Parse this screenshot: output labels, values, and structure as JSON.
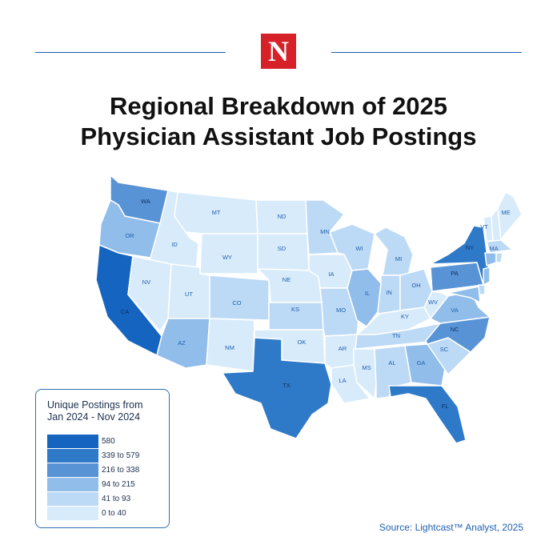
{
  "brand": {
    "logo_letter": "N",
    "logo_color": "#d62128"
  },
  "title": {
    "line1": "Regional Breakdown of 2025",
    "line2": "Physician Assistant Job Postings"
  },
  "legend": {
    "title_line1": "Unique Postings from",
    "title_line2": "Jan 2024 - Nov 2024",
    "bins": [
      {
        "label": "580",
        "color": "#1565c0"
      },
      {
        "label": "339 to 579",
        "color": "#2e7ac9"
      },
      {
        "label": "216 to 338",
        "color": "#5893d6"
      },
      {
        "label": "94 to 215",
        "color": "#91bdea"
      },
      {
        "label": "41 to 93",
        "color": "#bcdaf5"
      },
      {
        "label": "0 to 40",
        "color": "#d8ebfb"
      }
    ]
  },
  "states": [
    {
      "code": "WA",
      "bin": 2
    },
    {
      "code": "OR",
      "bin": 3
    },
    {
      "code": "CA",
      "bin": 0
    },
    {
      "code": "ID",
      "bin": 5
    },
    {
      "code": "NV",
      "bin": 5
    },
    {
      "code": "MT",
      "bin": 5
    },
    {
      "code": "WY",
      "bin": 5
    },
    {
      "code": "UT",
      "bin": 5
    },
    {
      "code": "AZ",
      "bin": 3
    },
    {
      "code": "CO",
      "bin": 4
    },
    {
      "code": "NM",
      "bin": 5
    },
    {
      "code": "ND",
      "bin": 5
    },
    {
      "code": "SD",
      "bin": 5
    },
    {
      "code": "NE",
      "bin": 5
    },
    {
      "code": "KS",
      "bin": 4
    },
    {
      "code": "OK",
      "bin": 5
    },
    {
      "code": "TX",
      "bin": 1
    },
    {
      "code": "MN",
      "bin": 4
    },
    {
      "code": "IA",
      "bin": 5
    },
    {
      "code": "MO",
      "bin": 4
    },
    {
      "code": "AR",
      "bin": 5
    },
    {
      "code": "LA",
      "bin": 5
    },
    {
      "code": "WI",
      "bin": 4
    },
    {
      "code": "IL",
      "bin": 3
    },
    {
      "code": "MI",
      "bin": 4
    },
    {
      "code": "IN",
      "bin": 4
    },
    {
      "code": "OH",
      "bin": 4
    },
    {
      "code": "KY",
      "bin": 5
    },
    {
      "code": "TN",
      "bin": 4
    },
    {
      "code": "MS",
      "bin": 5
    },
    {
      "code": "AL",
      "bin": 4
    },
    {
      "code": "GA",
      "bin": 3
    },
    {
      "code": "FL",
      "bin": 1
    },
    {
      "code": "SC",
      "bin": 4
    },
    {
      "code": "NC",
      "bin": 2
    },
    {
      "code": "VA",
      "bin": 3
    },
    {
      "code": "WV",
      "bin": 5
    },
    {
      "code": "PA",
      "bin": 2
    },
    {
      "code": "NY",
      "bin": 1
    },
    {
      "code": "VT",
      "bin": 5
    },
    {
      "code": "NH",
      "bin": 5
    },
    {
      "code": "ME",
      "bin": 5
    },
    {
      "code": "MA",
      "bin": 4
    },
    {
      "code": "CT",
      "bin": 3
    },
    {
      "code": "RI",
      "bin": 4
    },
    {
      "code": "NJ",
      "bin": 3
    },
    {
      "code": "DE",
      "bin": 4
    },
    {
      "code": "MD",
      "bin": 3
    }
  ],
  "source": "Source: Lightcast™ Analyst, 2025"
}
